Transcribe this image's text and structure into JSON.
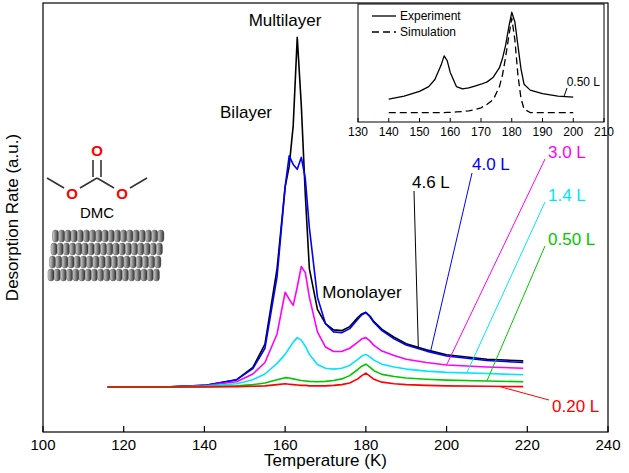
{
  "chart_data": [
    {
      "type": "line",
      "x_label": "Temperature (K)",
      "y_label": "Desorption Rate (a.u.)",
      "x": [
        116,
        130,
        140,
        148,
        152,
        155,
        158,
        160,
        161,
        162,
        163,
        164,
        165,
        166,
        168,
        170,
        172,
        174,
        176,
        178,
        179,
        180,
        181,
        182,
        184,
        187,
        190,
        195,
        200,
        210,
        219
      ],
      "series": [
        {
          "name": "0.20 L",
          "color": "#ff0000",
          "values": [
            11.0,
            11.0,
            11.0,
            11.1,
            11.2,
            11.3,
            11.6,
            11.8,
            11.7,
            11.6,
            11.5,
            11.4,
            11.4,
            11.3,
            11.3,
            11.3,
            11.4,
            11.6,
            12.0,
            13.0,
            13.8,
            14.4,
            13.7,
            12.9,
            12.2,
            11.8,
            11.6,
            11.4,
            11.3,
            11.2,
            11.1
          ]
        },
        {
          "name": "0.50 L",
          "color": "#00c800",
          "values": [
            11.0,
            11.0,
            11.1,
            11.3,
            11.6,
            12.0,
            12.8,
            13.3,
            13.2,
            13.0,
            12.8,
            12.6,
            12.5,
            12.4,
            12.3,
            12.4,
            12.6,
            13.0,
            13.8,
            15.3,
            16.1,
            16.6,
            15.9,
            15.0,
            14.1,
            13.6,
            13.2,
            12.9,
            12.7,
            12.5,
            12.3
          ]
        },
        {
          "name": "1.4 L",
          "color": "#00e5ff",
          "values": [
            11.0,
            11.0,
            11.2,
            11.8,
            12.8,
            14.2,
            16.8,
            19.0,
            20.5,
            22.0,
            23.1,
            22.5,
            21.0,
            19.0,
            16.5,
            15.6,
            15.4,
            15.6,
            16.3,
            17.8,
            18.6,
            19.0,
            18.4,
            17.6,
            16.6,
            15.9,
            15.4,
            14.9,
            14.6,
            14.3,
            14.0
          ]
        },
        {
          "name": "3.0 L",
          "color": "#ff00ff",
          "values": [
            11.0,
            11.0,
            11.3,
            12.3,
            14.2,
            17.0,
            24.0,
            34.2,
            32.5,
            31.0,
            35.5,
            40.5,
            39.0,
            33.0,
            24.5,
            20.8,
            19.7,
            19.7,
            20.5,
            22.0,
            22.8,
            23.1,
            22.3,
            21.2,
            19.8,
            18.7,
            17.8,
            17.0,
            16.4,
            15.9,
            15.6
          ]
        },
        {
          "name": "4.0 L",
          "color": "#0000ff",
          "values": [
            11.0,
            11.0,
            11.4,
            12.8,
            15.5,
            20.5,
            38.0,
            60.0,
            67.6,
            65.5,
            64.3,
            67.2,
            62.0,
            50.0,
            33.0,
            26.5,
            24.5,
            24.3,
            25.3,
            27.6,
            28.7,
            29.2,
            28.2,
            26.8,
            24.8,
            22.8,
            21.3,
            19.8,
            18.6,
            17.5,
            17.0
          ]
        },
        {
          "name": "4.6 L",
          "color": "#000000",
          "values": [
            11.0,
            11.0,
            11.4,
            12.8,
            15.8,
            21.5,
            40.0,
            60.0,
            65.0,
            75.0,
            96.6,
            80.0,
            58.0,
            40.0,
            30.0,
            26.5,
            25.0,
            24.8,
            25.8,
            28.0,
            28.9,
            29.3,
            28.4,
            27.0,
            25.1,
            23.2,
            21.6,
            20.1,
            18.9,
            17.8,
            17.4
          ]
        }
      ],
      "xlim": [
        100,
        240
      ],
      "xticks": [
        100,
        120,
        140,
        160,
        180,
        200,
        220,
        240
      ],
      "ylim": [
        0,
        105
      ],
      "tick_labels": "x",
      "annotations": [
        "Multilayer",
        "Bilayer",
        "Monolayer",
        "DMC",
        "O",
        "O",
        "O"
      ]
    },
    {
      "type": "line",
      "x": [
        140,
        145,
        150,
        153,
        155,
        157,
        158,
        159,
        160,
        162,
        164,
        166,
        168,
        170,
        172,
        174,
        176,
        177,
        178,
        179,
        180,
        181,
        182,
        183,
        184,
        186,
        190,
        195,
        200
      ],
      "series": [
        {
          "name": "Experiment",
          "color": "#000000",
          "line_style": "solid",
          "values": [
            19.3,
            22,
            26,
            30,
            36,
            48,
            56,
            52,
            42,
            30,
            28,
            29,
            30.5,
            32,
            34,
            38,
            46,
            54,
            65,
            80,
            93,
            85,
            65,
            45,
            32,
            27,
            24,
            22,
            21
          ]
        },
        {
          "name": "Simulation",
          "color": "#000000",
          "line_style": "dashed",
          "values": [
            7.9,
            7.9,
            7.9,
            7.9,
            8,
            8,
            8,
            8.1,
            8.2,
            8.5,
            8.9,
            9.5,
            10.5,
            12,
            15,
            19,
            30,
            40,
            55,
            72,
            88,
            70,
            40,
            20,
            11,
            8,
            7.9,
            7.9,
            7.9
          ]
        }
      ],
      "xlim": [
        130,
        210
      ],
      "xticks": [
        130,
        140,
        150,
        160,
        170,
        180,
        190,
        200,
        210
      ],
      "ylim": [
        0,
        100
      ],
      "tick_labels": "x",
      "legend": "upper left",
      "annotations": [
        "0.50 L"
      ]
    }
  ]
}
